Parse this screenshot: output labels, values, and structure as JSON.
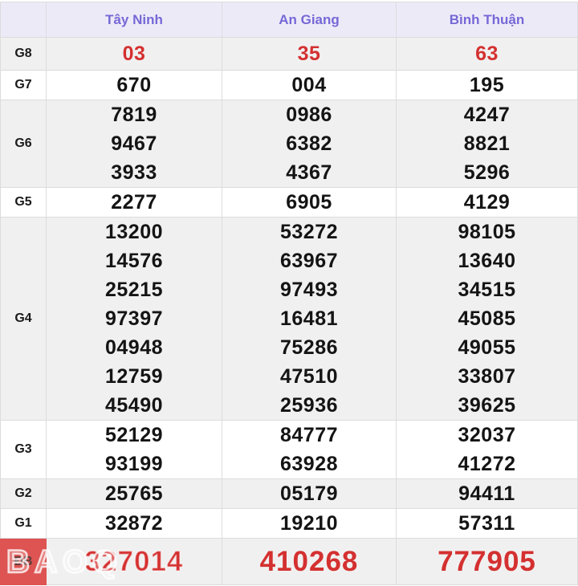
{
  "columns": [
    "Tây Ninh",
    "An Giang",
    "Bình Thuận"
  ],
  "corner_label": "",
  "watermark": "BAOQ",
  "colors": {
    "value_red": "#d43030",
    "db_label_bg": "#dd5452",
    "header_bg": "#edeaf8",
    "header_text": "#7568d6",
    "shaded_row_bg": "#f1f0f0"
  },
  "rows": [
    {
      "label": "G8",
      "shaded": true,
      "red": true,
      "special": false,
      "values": [
        [
          "03"
        ],
        [
          "35"
        ],
        [
          "63"
        ]
      ]
    },
    {
      "label": "G7",
      "shaded": false,
      "red": false,
      "special": false,
      "values": [
        [
          "670"
        ],
        [
          "004"
        ],
        [
          "195"
        ]
      ]
    },
    {
      "label": "G6",
      "shaded": true,
      "red": false,
      "special": false,
      "values": [
        [
          "7819",
          "9467",
          "3933"
        ],
        [
          "0986",
          "6382",
          "4367"
        ],
        [
          "4247",
          "8821",
          "5296"
        ]
      ]
    },
    {
      "label": "G5",
      "shaded": false,
      "red": false,
      "special": false,
      "values": [
        [
          "2277"
        ],
        [
          "6905"
        ],
        [
          "4129"
        ]
      ]
    },
    {
      "label": "G4",
      "shaded": true,
      "red": false,
      "special": false,
      "values": [
        [
          "13200",
          "14576",
          "25215",
          "97397",
          "04948",
          "12759",
          "45490"
        ],
        [
          "53272",
          "63967",
          "97493",
          "16481",
          "75286",
          "47510",
          "25936"
        ],
        [
          "98105",
          "13640",
          "34515",
          "45085",
          "49055",
          "33807",
          "39625"
        ]
      ]
    },
    {
      "label": "G3",
      "shaded": false,
      "red": false,
      "special": false,
      "values": [
        [
          "52129",
          "93199"
        ],
        [
          "84777",
          "63928"
        ],
        [
          "32037",
          "41272"
        ]
      ]
    },
    {
      "label": "G2",
      "shaded": true,
      "red": false,
      "special": false,
      "values": [
        [
          "25765"
        ],
        [
          "05179"
        ],
        [
          "94411"
        ]
      ]
    },
    {
      "label": "G1",
      "shaded": false,
      "red": false,
      "special": false,
      "values": [
        [
          "32872"
        ],
        [
          "19210"
        ],
        [
          "57311"
        ]
      ]
    },
    {
      "label": "ĐB",
      "shaded": true,
      "red": true,
      "special": true,
      "values": [
        [
          "327014"
        ],
        [
          "410268"
        ],
        [
          "777905"
        ]
      ]
    }
  ]
}
